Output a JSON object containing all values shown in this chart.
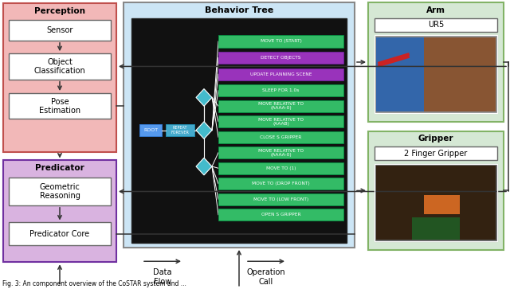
{
  "perception_title": "Perception",
  "perception_color": "#f2b8b8",
  "perception_border": "#c0504d",
  "predicator_title": "Predicator",
  "predicator_color": "#d9b3e0",
  "predicator_border": "#7030a0",
  "bt_title": "Behavior Tree",
  "bt_outer_color": "#cce5f5",
  "bt_inner_color": "#111111",
  "arm_title": "Arm",
  "arm_color": "#d5e8d4",
  "arm_border": "#82b366",
  "arm_label": "UR5",
  "gripper_title": "Gripper",
  "gripper_color": "#d5e8d4",
  "gripper_border": "#82b366",
  "gripper_label": "2 Finger Gripper",
  "node_green": "#33bb66",
  "node_purple": "#9933bb",
  "node_cyan": "#44bbcc",
  "node_blue": "#5599dd",
  "arrow_color": "#333333",
  "data_flow_label": "Data\nFlow",
  "operation_call_label": "Operation\nCall",
  "background": "white",
  "bt_nodes": [
    {
      "label": "MOVE TO (START)",
      "color": "#33bb66"
    },
    {
      "label": "DETECT OBJECTS",
      "color": "#9933bb"
    },
    {
      "label": "UPDATE PLANNING SCENE",
      "color": "#9933bb"
    },
    {
      "label": "SLEEP FOR 1.0s",
      "color": "#33bb66"
    },
    {
      "label": "MOVE RELATIVE TO\n(AAAA-0)",
      "color": "#33bb66"
    },
    {
      "label": "MOVE RELATIVE TO\n(AAAB)",
      "color": "#33bb66"
    },
    {
      "label": "CLOSE S GRIPPER",
      "color": "#33bb66"
    },
    {
      "label": "MOVE RELATIVE TO\n(AAAA-0)",
      "color": "#33bb66"
    },
    {
      "label": "MOVE TO (1)",
      "color": "#33bb66"
    },
    {
      "label": "MOVE TO (DROP FRONT)",
      "color": "#33bb66"
    },
    {
      "label": "MOVE TO (LOW FRONT)",
      "color": "#33bb66"
    },
    {
      "label": "OPEN S GRIPPER",
      "color": "#33bb66"
    }
  ]
}
